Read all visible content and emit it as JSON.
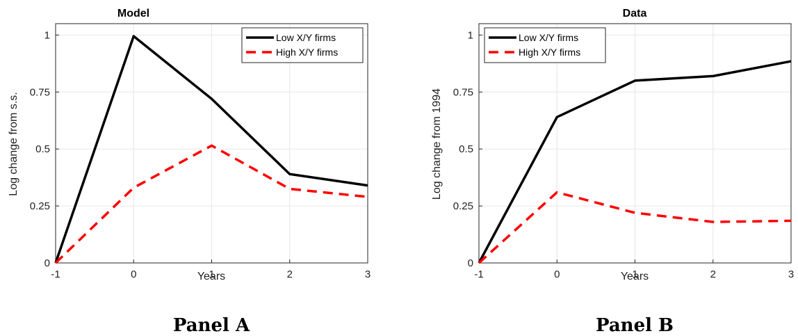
{
  "chart_data": [
    {
      "type": "line",
      "title": "Model",
      "xlabel": "Years",
      "ylabel": "Log change from s.s.",
      "caption": "Panel A",
      "x": [
        -1,
        0,
        1,
        2,
        3
      ],
      "xlim": [
        -1,
        3
      ],
      "ylim": [
        0,
        1.05
      ],
      "xticks": [
        "-1",
        "0",
        "1",
        "2",
        "3"
      ],
      "yticks": [
        "0",
        "0.25",
        "0.5",
        "0.75",
        "1"
      ],
      "yticks_values": [
        0,
        0.25,
        0.5,
        0.75,
        1
      ],
      "grid": true,
      "legend_position": "top-right",
      "series": [
        {
          "name": "Low X/Y firms",
          "values": [
            0,
            0.995,
            0.72,
            0.39,
            0.34
          ],
          "color": "#000000",
          "style": "solid"
        },
        {
          "name": "High X/Y firms",
          "values": [
            0,
            0.33,
            0.515,
            0.325,
            0.29
          ],
          "color": "#ff0000",
          "style": "dashed"
        }
      ]
    },
    {
      "type": "line",
      "title": "Data",
      "xlabel": "Years",
      "ylabel": "Log change from 1994",
      "caption": "Panel B",
      "x": [
        -1,
        0,
        1,
        2,
        3
      ],
      "xlim": [
        -1,
        3
      ],
      "ylim": [
        0,
        1.05
      ],
      "xticks": [
        "-1",
        "0",
        "1",
        "2",
        "3"
      ],
      "yticks": [
        "0",
        "0.25",
        "0.5",
        "0.75",
        "1"
      ],
      "yticks_values": [
        0,
        0.25,
        0.5,
        0.75,
        1
      ],
      "grid": true,
      "legend_position": "top-left",
      "series": [
        {
          "name": "Low X/Y firms",
          "values": [
            0,
            0.64,
            0.8,
            0.82,
            0.885
          ],
          "color": "#000000",
          "style": "solid"
        },
        {
          "name": "High X/Y firms",
          "values": [
            0,
            0.31,
            0.22,
            0.18,
            0.185
          ],
          "color": "#ff0000",
          "style": "dashed"
        }
      ]
    }
  ]
}
